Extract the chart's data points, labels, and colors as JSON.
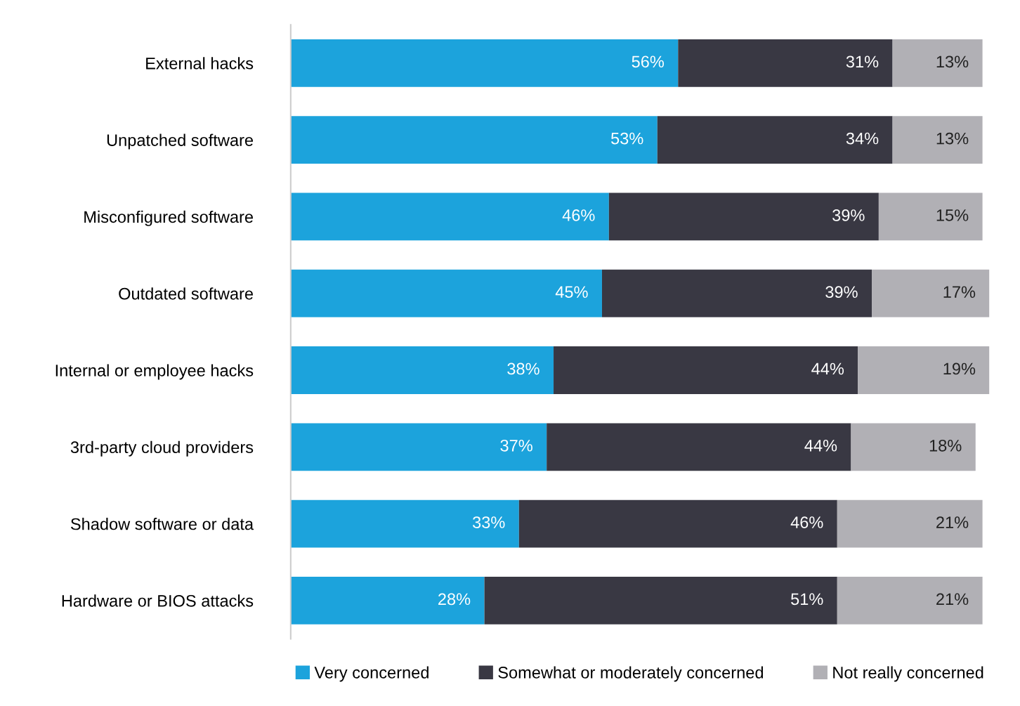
{
  "chart_data": {
    "type": "bar",
    "orientation": "horizontal",
    "stacked": true,
    "legend": "bottom",
    "grid": false,
    "categories": [
      "External hacks",
      "Unpatched software",
      "Misconfigured software",
      "Outdated software",
      "Internal or employee hacks",
      "3rd-party cloud providers",
      "Shadow software or data",
      "Hardware or BIOS attacks"
    ],
    "series": [
      {
        "name": "Very concerned",
        "color": "#1ca3dc",
        "values": [
          56,
          53,
          46,
          45,
          38,
          37,
          33,
          28
        ],
        "value_labels": [
          "56%",
          "53%",
          "46%",
          "45%",
          "38%",
          "37%",
          "33%",
          "28%"
        ]
      },
      {
        "name": "Somewhat or moderately concerned",
        "color": "#393843",
        "values": [
          31,
          34,
          39,
          39,
          44,
          44,
          46,
          51
        ],
        "value_labels": [
          "31%",
          "34%",
          "39%",
          "39%",
          "44%",
          "44%",
          "46%",
          "51%"
        ]
      },
      {
        "name": "Not really concerned",
        "color": "#b1b0b5",
        "values": [
          13,
          13,
          15,
          17,
          19,
          18,
          21,
          21
        ],
        "value_labels": [
          "13%",
          "13%",
          "15%",
          "17%",
          "19%",
          "18%",
          "21%",
          "21%"
        ]
      }
    ]
  }
}
